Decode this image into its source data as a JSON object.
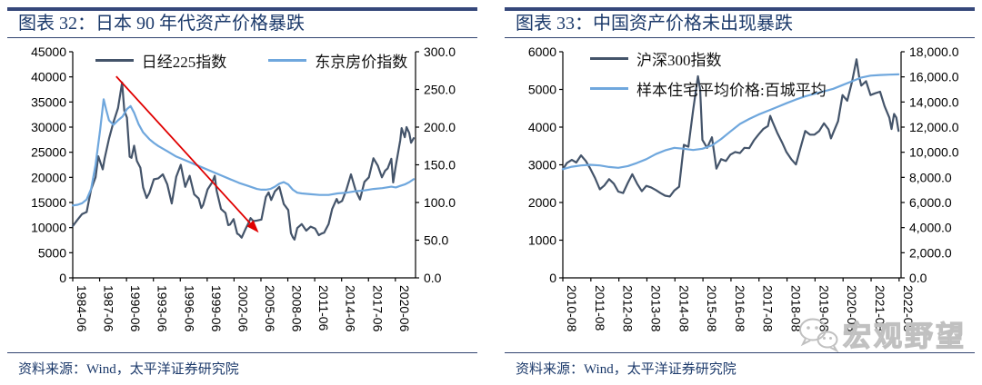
{
  "panels": [
    {
      "title": "图表 32：日本 90 年代资产价格暴跌",
      "source": "资料来源：Wind，太平洋证券研究院"
    },
    {
      "title": "图表 33：中国资产价格未出现暴跌",
      "source": "资料来源：Wind，太平洋证券研究院",
      "watermark": "宏观野望"
    }
  ],
  "colors": {
    "navy_line": "#44546a",
    "light_blue": "#6fa7dd",
    "arrow_red": "#e00000",
    "heading_navy": "#1c3a6b",
    "rule_navy": "#31436f",
    "watermark_gray": "#c0c0c0"
  },
  "chart_data": [
    {
      "type": "line",
      "title": "日本 90 年代资产价格暴跌",
      "x_range": [
        1984.45,
        2022.7
      ],
      "x_tick_values": [
        1984.45,
        1987.45,
        1990.45,
        1993.45,
        1996.45,
        1999.45,
        2002.45,
        2005.45,
        2008.45,
        2011.45,
        2014.45,
        2017.45,
        2020.45
      ],
      "x_tick_labels": [
        "1984-06",
        "1987-06",
        "1990-06",
        "1993-06",
        "1996-06",
        "1999-06",
        "2002-06",
        "2005-06",
        "2008-06",
        "2011-06",
        "2014-06",
        "2017-06",
        "2020-06"
      ],
      "y_left": {
        "min": 0,
        "max": 45000,
        "tick_labels": [
          "45000",
          "40000",
          "35000",
          "30000",
          "25000",
          "20000",
          "15000",
          "10000",
          "5000",
          "0"
        ]
      },
      "y_right": {
        "min": 0,
        "max": 300,
        "tick_labels": [
          "300.0",
          "250.0",
          "200.0",
          "150.0",
          "100.0",
          "50.0",
          "0.0"
        ]
      },
      "legend_position": "top-horizontal",
      "series": [
        {
          "name": "日经225指数",
          "axis": "left",
          "color": "#44546a",
          "x": [
            1984.45,
            1985.0,
            1985.5,
            1986.0,
            1986.5,
            1987.0,
            1987.3,
            1987.8,
            1988.0,
            1988.5,
            1989.0,
            1989.5,
            1989.96,
            1990.2,
            1990.5,
            1990.8,
            1991.0,
            1991.3,
            1991.6,
            1992.0,
            1992.3,
            1992.7,
            1993.0,
            1993.5,
            1994.0,
            1994.5,
            1995.0,
            1995.5,
            1996.0,
            1996.5,
            1997.0,
            1997.5,
            1998.0,
            1998.5,
            1998.8,
            1999.0,
            1999.5,
            2000.0,
            2000.3,
            2000.5,
            2001.0,
            2001.5,
            2001.8,
            2002.0,
            2002.4,
            2002.8,
            2003.0,
            2003.3,
            2003.7,
            2004.0,
            2004.3,
            2004.6,
            2005.0,
            2005.5,
            2006.0,
            2006.3,
            2006.6,
            2007.0,
            2007.5,
            2008.0,
            2008.5,
            2008.8,
            2009.0,
            2009.2,
            2009.5,
            2010.0,
            2010.5,
            2011.0,
            2011.5,
            2011.9,
            2012.2,
            2012.5,
            2013.0,
            2013.4,
            2013.9,
            2014.1,
            2014.5,
            2015.0,
            2015.5,
            2016.0,
            2016.5,
            2017.0,
            2017.5,
            2018.0,
            2018.5,
            2018.95,
            2019.3,
            2019.6,
            2020.0,
            2020.2,
            2020.5,
            2021.0,
            2021.15,
            2021.5,
            2021.7,
            2022.0,
            2022.2,
            2022.5
          ],
          "y": [
            10300,
            11600,
            12700,
            13100,
            17600,
            20000,
            24200,
            21600,
            23700,
            27700,
            31000,
            33800,
            38900,
            33300,
            31900,
            24100,
            23900,
            26300,
            23300,
            21900,
            18000,
            15900,
            16900,
            19600,
            19800,
            20600,
            18600,
            14800,
            20100,
            22500,
            18100,
            20300,
            16600,
            15800,
            13900,
            14500,
            17600,
            19000,
            20300,
            17400,
            13700,
            12900,
            10500,
            10600,
            11700,
            8800,
            8600,
            8000,
            9600,
            10700,
            11900,
            11300,
            11400,
            11600,
            16100,
            17000,
            15500,
            17200,
            18100,
            14700,
            13500,
            8900,
            8100,
            7600,
            9900,
            10700,
            9400,
            10200,
            9800,
            8500,
            8800,
            9000,
            10700,
            13700,
            15700,
            14900,
            15300,
            17600,
            20600,
            17500,
            15600,
            19100,
            20000,
            23800,
            22300,
            20000,
            21300,
            21800,
            23700,
            19000,
            22300,
            27400,
            29800,
            28000,
            30000,
            28800,
            26900,
            27800
          ]
        },
        {
          "name": "东京房价指数",
          "axis": "right",
          "color": "#6fa7dd",
          "x": [
            1984.45,
            1985.0,
            1985.5,
            1986.0,
            1986.5,
            1987.0,
            1987.5,
            1987.9,
            1988.2,
            1988.5,
            1989.0,
            1989.5,
            1990.0,
            1990.5,
            1990.9,
            1991.3,
            1991.8,
            1992.3,
            1993.0,
            1993.5,
            1994.0,
            1995.0,
            1996.0,
            1997.0,
            1998.0,
            1999.0,
            2000.0,
            2001.0,
            2002.0,
            2003.0,
            2004.0,
            2005.0,
            2005.5,
            2006.0,
            2006.5,
            2007.0,
            2007.5,
            2008.0,
            2008.5,
            2009.0,
            2009.5,
            2010.0,
            2011.0,
            2012.0,
            2013.0,
            2014.0,
            2015.0,
            2016.0,
            2017.0,
            2018.0,
            2019.0,
            2020.0,
            2020.5,
            2021.0,
            2021.5,
            2022.0,
            2022.5
          ],
          "y": [
            96,
            97,
            99,
            104,
            118,
            150,
            196,
            237,
            222,
            209,
            203,
            209,
            214,
            224,
            228,
            219,
            204,
            193,
            184,
            179,
            175,
            168,
            161,
            156,
            151,
            146,
            141,
            136,
            131,
            126,
            122,
            118,
            117,
            117,
            118,
            121,
            125,
            127,
            124,
            117,
            113,
            112,
            111,
            110,
            110,
            112,
            113,
            115,
            116,
            118,
            119,
            121,
            120,
            122,
            124,
            127,
            131
          ]
        }
      ],
      "annotation_arrow": {
        "x1": 1989.3,
        "y1": 40100,
        "x2": 2005.2,
        "y2": 9000,
        "color": "#e00000"
      }
    },
    {
      "type": "line",
      "title": "中国资产价格未出现暴跌",
      "x_range": [
        2010.6,
        2022.67
      ],
      "x_tick_values": [
        2010.6,
        2011.6,
        2012.6,
        2013.6,
        2014.6,
        2015.6,
        2016.6,
        2017.6,
        2018.6,
        2019.6,
        2020.6,
        2021.6,
        2022.6
      ],
      "x_tick_labels": [
        "2010-08",
        "2011-08",
        "2012-08",
        "2013-08",
        "2014-08",
        "2015-08",
        "2016-08",
        "2017-08",
        "2018-08",
        "2019-08",
        "2020-08",
        "2021-08",
        "2022-08"
      ],
      "y_left": {
        "min": 0,
        "max": 6000,
        "tick_labels": [
          "6000",
          "5000",
          "4000",
          "3000",
          "2000",
          "1000",
          "0"
        ]
      },
      "y_right": {
        "min": 0,
        "max": 18000,
        "tick_labels": [
          "18,000.0",
          "16,000.0",
          "14,000.0",
          "12,000.0",
          "10,000.0",
          "8,000.0",
          "6,000.0",
          "4,000.0",
          "2,000.0",
          "0.0"
        ]
      },
      "legend_position": "top-left-vertical",
      "series": [
        {
          "name": "沪深300指数",
          "axis": "left",
          "color": "#44546a",
          "x": [
            2010.6,
            2010.75,
            2010.92,
            2011.08,
            2011.25,
            2011.42,
            2011.58,
            2011.75,
            2011.92,
            2012.08,
            2012.25,
            2012.42,
            2012.58,
            2012.75,
            2012.92,
            2013.08,
            2013.25,
            2013.42,
            2013.58,
            2013.75,
            2013.92,
            2014.08,
            2014.25,
            2014.42,
            2014.58,
            2014.75,
            2014.92,
            2015.08,
            2015.25,
            2015.42,
            2015.5,
            2015.58,
            2015.75,
            2015.92,
            2016.08,
            2016.25,
            2016.42,
            2016.58,
            2016.75,
            2016.92,
            2017.08,
            2017.25,
            2017.42,
            2017.58,
            2017.75,
            2017.92,
            2018.0,
            2018.08,
            2018.25,
            2018.42,
            2018.58,
            2018.75,
            2018.92,
            2019.08,
            2019.25,
            2019.42,
            2019.58,
            2019.75,
            2019.92,
            2020.08,
            2020.17,
            2020.25,
            2020.42,
            2020.58,
            2020.75,
            2020.92,
            2021.08,
            2021.17,
            2021.25,
            2021.42,
            2021.58,
            2021.75,
            2021.92,
            2022.08,
            2022.25,
            2022.33,
            2022.42,
            2022.5,
            2022.58
          ],
          "y": [
            2880,
            3050,
            3130,
            3060,
            3250,
            3100,
            2900,
            2650,
            2350,
            2450,
            2620,
            2500,
            2290,
            2250,
            2520,
            2750,
            2500,
            2300,
            2440,
            2400,
            2330,
            2250,
            2180,
            2160,
            2320,
            2420,
            3530,
            3480,
            4450,
            5350,
            5000,
            3660,
            3450,
            3730,
            2900,
            3150,
            3100,
            3270,
            3340,
            3310,
            3450,
            3440,
            3650,
            3800,
            3950,
            4030,
            4300,
            4150,
            3850,
            3600,
            3340,
            3150,
            3010,
            3450,
            3900,
            3800,
            3800,
            3900,
            4100,
            3940,
            3700,
            3850,
            4160,
            4850,
            4700,
            5210,
            5800,
            5350,
            5100,
            5220,
            4850,
            4900,
            4940,
            4560,
            4250,
            3950,
            4350,
            4250,
            3900
          ]
        },
        {
          "name": "样本住宅平均价格:百城平均",
          "axis": "right",
          "color": "#6fa7dd",
          "x": [
            2010.6,
            2010.92,
            2011.25,
            2011.58,
            2011.92,
            2012.25,
            2012.58,
            2012.92,
            2013.25,
            2013.58,
            2013.92,
            2014.25,
            2014.58,
            2014.92,
            2015.25,
            2015.58,
            2015.92,
            2016.25,
            2016.58,
            2016.92,
            2017.25,
            2017.58,
            2017.92,
            2018.25,
            2018.58,
            2018.92,
            2019.25,
            2019.58,
            2019.92,
            2020.25,
            2020.58,
            2020.92,
            2021.25,
            2021.58,
            2021.92,
            2022.25,
            2022.58
          ],
          "y": [
            8650,
            8850,
            8950,
            9000,
            8950,
            8830,
            8760,
            8900,
            9150,
            9450,
            9850,
            10150,
            10350,
            10280,
            10180,
            10280,
            10550,
            11050,
            11650,
            12250,
            12650,
            13000,
            13300,
            13600,
            13900,
            14200,
            14450,
            14650,
            14850,
            15050,
            15350,
            15650,
            15950,
            16100,
            16150,
            16180,
            16200
          ]
        }
      ]
    }
  ]
}
